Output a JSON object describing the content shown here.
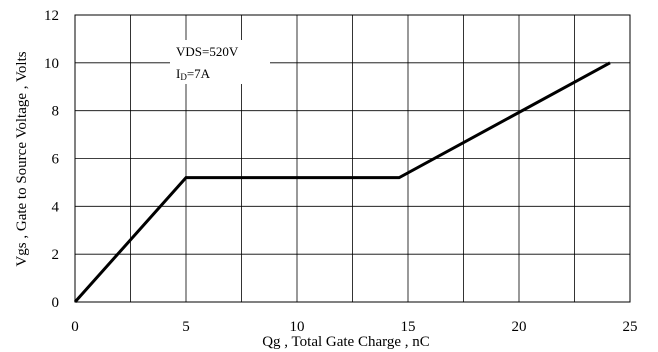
{
  "chart_data": {
    "type": "line",
    "title": "",
    "xlabel": "Qg , Total Gate Charge , nC",
    "ylabel": "Vgs , Gate to Source Voltage , Volts",
    "xlim": [
      0,
      25
    ],
    "ylim": [
      0,
      12
    ],
    "xticks": [
      0,
      5,
      10,
      15,
      20,
      25
    ],
    "yticks": [
      0,
      2,
      4,
      6,
      8,
      10,
      12
    ],
    "xtick_labels": [
      "0",
      "5",
      "10",
      "15",
      "20",
      "25"
    ],
    "ytick_labels": [
      "0",
      "2",
      "4",
      "6",
      "8",
      "10",
      "12"
    ],
    "grid": true,
    "legend": "none",
    "series": [
      {
        "x": [
          0,
          5,
          14.6,
          24.1
        ],
        "y": [
          0,
          5.2,
          5.2,
          10
        ]
      }
    ],
    "annotation": {
      "line1": "VDS=520V",
      "line2_main": "I",
      "line2_sub": "D",
      "line2_rest": "=7A"
    }
  }
}
